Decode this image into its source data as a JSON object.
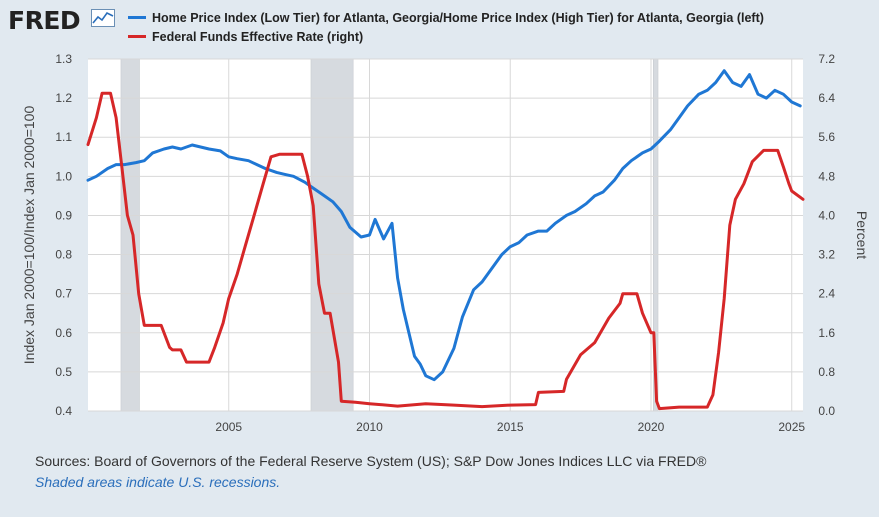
{
  "brand": "FRED",
  "icon": "chart-line-icon",
  "legend": [
    {
      "label": "Home Price Index (Low Tier) for Atlanta, Georgia/Home Price Index (High Tier) for Atlanta, Georgia (left)",
      "color": "#1f77d4"
    },
    {
      "label": "Federal Funds Effective Rate (right)",
      "color": "#d62728"
    }
  ],
  "footer": {
    "sources": "Sources: Board of Governors of the Federal Reserve System (US); S&P Dow Jones Indices LLC via FRED®",
    "recession_note": "Shaded areas indicate U.S. recessions."
  },
  "chart_data": {
    "type": "line",
    "x_range": [
      2000.0,
      2025.4
    ],
    "x_ticks": [
      2005,
      2010,
      2015,
      2020,
      2025
    ],
    "y_left": {
      "label": "Index Jan 2000=100/Index Jan 2000=100",
      "ylim": [
        0.4,
        1.3
      ],
      "ticks": [
        "0.4",
        "0.5",
        "0.6",
        "0.7",
        "0.8",
        "0.9",
        "1.0",
        "1.1",
        "1.2",
        "1.3"
      ]
    },
    "y_right": {
      "label": "Percent",
      "ylim": [
        0.0,
        7.2
      ],
      "ticks": [
        "0.0",
        "0.8",
        "1.6",
        "2.4",
        "3.2",
        "4.0",
        "4.8",
        "5.6",
        "6.4",
        "7.2"
      ]
    },
    "recessions": [
      [
        2001.17,
        2001.83
      ],
      [
        2007.92,
        2009.42
      ],
      [
        2020.08,
        2020.25
      ]
    ],
    "grid": true,
    "series": [
      {
        "name": "Home Price Index (Low Tier) for Atlanta, Georgia/Home Price Index (High Tier) for Atlanta, Georgia",
        "axis": "left",
        "color": "#1f77d4",
        "x": [
          2000.0,
          2000.3,
          2000.7,
          2001.0,
          2001.3,
          2001.7,
          2002.0,
          2002.3,
          2002.7,
          2003.0,
          2003.3,
          2003.7,
          2004.0,
          2004.3,
          2004.7,
          2005.0,
          2005.3,
          2005.7,
          2006.0,
          2006.3,
          2006.7,
          2007.0,
          2007.3,
          2007.7,
          2008.0,
          2008.3,
          2008.7,
          2009.0,
          2009.3,
          2009.7,
          2010.0,
          2010.2,
          2010.5,
          2010.8,
          2011.0,
          2011.2,
          2011.4,
          2011.6,
          2011.8,
          2012.0,
          2012.3,
          2012.6,
          2013.0,
          2013.3,
          2013.7,
          2014.0,
          2014.3,
          2014.7,
          2015.0,
          2015.3,
          2015.6,
          2016.0,
          2016.3,
          2016.6,
          2017.0,
          2017.3,
          2017.7,
          2018.0,
          2018.3,
          2018.7,
          2019.0,
          2019.3,
          2019.7,
          2020.0,
          2020.3,
          2020.7,
          2021.0,
          2021.3,
          2021.7,
          2022.0,
          2022.3,
          2022.6,
          2022.9,
          2023.2,
          2023.5,
          2023.8,
          2024.1,
          2024.4,
          2024.7,
          2025.0,
          2025.3
        ],
        "values": [
          0.99,
          1.0,
          1.02,
          1.03,
          1.03,
          1.035,
          1.04,
          1.06,
          1.07,
          1.075,
          1.07,
          1.08,
          1.075,
          1.07,
          1.065,
          1.05,
          1.045,
          1.04,
          1.03,
          1.02,
          1.01,
          1.005,
          1.0,
          0.985,
          0.97,
          0.955,
          0.935,
          0.91,
          0.87,
          0.845,
          0.85,
          0.89,
          0.84,
          0.88,
          0.74,
          0.66,
          0.6,
          0.54,
          0.52,
          0.49,
          0.48,
          0.5,
          0.56,
          0.64,
          0.71,
          0.73,
          0.76,
          0.8,
          0.82,
          0.83,
          0.85,
          0.86,
          0.86,
          0.88,
          0.9,
          0.91,
          0.93,
          0.95,
          0.96,
          0.99,
          1.02,
          1.04,
          1.06,
          1.07,
          1.09,
          1.12,
          1.15,
          1.18,
          1.21,
          1.22,
          1.24,
          1.27,
          1.24,
          1.23,
          1.26,
          1.21,
          1.2,
          1.22,
          1.21,
          1.19,
          1.18
        ]
      },
      {
        "name": "Federal Funds Effective Rate",
        "axis": "right",
        "color": "#d62728",
        "x": [
          2000.0,
          2000.3,
          2000.5,
          2000.8,
          2001.0,
          2001.2,
          2001.4,
          2001.6,
          2001.8,
          2002.0,
          2002.3,
          2002.6,
          2002.9,
          2003.0,
          2003.3,
          2003.5,
          2003.8,
          2004.0,
          2004.3,
          2004.5,
          2004.8,
          2005.0,
          2005.3,
          2005.6,
          2005.9,
          2006.2,
          2006.5,
          2006.8,
          2007.0,
          2007.3,
          2007.6,
          2007.8,
          2008.0,
          2008.2,
          2008.4,
          2008.6,
          2008.9,
          2009.0,
          2009.5,
          2010.0,
          2011.0,
          2012.0,
          2013.0,
          2014.0,
          2015.0,
          2015.9,
          2016.0,
          2016.9,
          2017.0,
          2017.5,
          2018.0,
          2018.5,
          2018.9,
          2019.0,
          2019.5,
          2019.7,
          2020.0,
          2020.1,
          2020.2,
          2020.3,
          2021.0,
          2022.0,
          2022.2,
          2022.4,
          2022.6,
          2022.8,
          2023.0,
          2023.3,
          2023.6,
          2024.0,
          2024.5,
          2024.7,
          2024.9,
          2025.0,
          2025.4
        ],
        "values": [
          5.45,
          6.0,
          6.5,
          6.5,
          6.0,
          5.0,
          4.0,
          3.6,
          2.4,
          1.75,
          1.75,
          1.75,
          1.3,
          1.25,
          1.25,
          1.0,
          1.0,
          1.0,
          1.0,
          1.3,
          1.8,
          2.3,
          2.8,
          3.4,
          4.0,
          4.6,
          5.2,
          5.25,
          5.25,
          5.25,
          5.25,
          4.8,
          4.2,
          2.6,
          2.0,
          2.0,
          1.0,
          0.2,
          0.18,
          0.15,
          0.1,
          0.15,
          0.12,
          0.09,
          0.12,
          0.13,
          0.38,
          0.4,
          0.65,
          1.15,
          1.4,
          1.9,
          2.2,
          2.4,
          2.4,
          2.0,
          1.6,
          1.6,
          0.2,
          0.05,
          0.08,
          0.08,
          0.33,
          1.2,
          2.3,
          3.8,
          4.33,
          4.65,
          5.1,
          5.33,
          5.33,
          5.0,
          4.65,
          4.5,
          4.33
        ]
      }
    ]
  }
}
